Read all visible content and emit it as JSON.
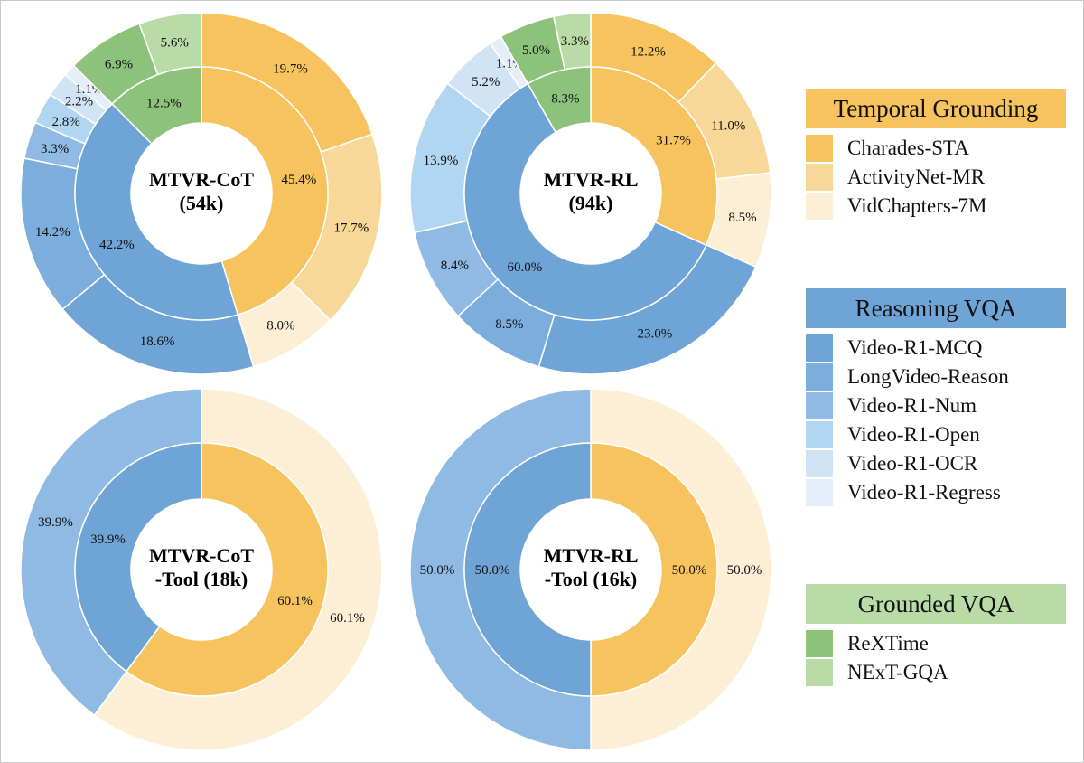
{
  "colors": {
    "Charades-STA": "#f6c35e",
    "ActivityNet-MR": "#f7d899",
    "VidChapters-7M": "#fcefd6",
    "Video-R1-MCQ": "#6fa4d6",
    "LongVideo-Reason": "#7caedd",
    "Video-R1-Num": "#8ebae4",
    "Video-R1-Open": "#b0d6f1",
    "Video-R1-OCR": "#d0e4f5",
    "Video-R1-Regress": "#e4eef8",
    "ReXTime": "#8dc27a",
    "NExT-GQA": "#b9dba7",
    "temporal_header": "#f6c35e",
    "reasoning_header": "#6fa4d6",
    "grounded_header": "#b9dba7",
    "inner_temporal": "#f6c35e",
    "inner_reasoning": "#6fa4d6",
    "inner_grounded": "#8dc27a"
  },
  "legend": {
    "groups": [
      {
        "header": "Temporal Grounding",
        "color_key": "temporal_header",
        "items": [
          "Charades-STA",
          "ActivityNet-MR",
          "VidChapters-7M"
        ]
      },
      {
        "header": "Reasoning VQA",
        "color_key": "reasoning_header",
        "items": [
          "Video-R1-MCQ",
          "LongVideo-Reason",
          "Video-R1-Num",
          "Video-R1-Open",
          "Video-R1-OCR",
          "Video-R1-Regress"
        ]
      },
      {
        "header": "Grounded VQA",
        "color_key": "grounded_header",
        "items": [
          "ReXTime",
          "NExT-GQA"
        ]
      }
    ]
  },
  "chart_data": [
    {
      "type": "pie",
      "title": "MTVR-CoT (54k)",
      "title_lines": [
        "MTVR-CoT",
        "(54k)"
      ],
      "inner": [
        {
          "name": "Temporal Grounding",
          "value": 45.4,
          "label": "45.4%",
          "color_key": "inner_temporal"
        },
        {
          "name": "Reasoning VQA",
          "value": 42.2,
          "label": "42.2%",
          "color_key": "inner_reasoning"
        },
        {
          "name": "Grounded VQA",
          "value": 12.5,
          "label": "12.5%",
          "color_key": "inner_grounded"
        }
      ],
      "outer": [
        {
          "name": "Charades-STA",
          "value": 19.7,
          "label": "19.7%"
        },
        {
          "name": "ActivityNet-MR",
          "value": 17.7,
          "label": "17.7%"
        },
        {
          "name": "VidChapters-7M",
          "value": 8.0,
          "label": "8.0%"
        },
        {
          "name": "Video-R1-MCQ",
          "value": 18.6,
          "label": "18.6%"
        },
        {
          "name": "LongVideo-Reason",
          "value": 14.2,
          "label": "14.2%"
        },
        {
          "name": "Video-R1-Num",
          "value": 3.3,
          "label": "3.3%"
        },
        {
          "name": "Video-R1-Open",
          "value": 2.8,
          "label": "2.8%"
        },
        {
          "name": "Video-R1-OCR",
          "value": 2.2,
          "label": "2.2%"
        },
        {
          "name": "Video-R1-Regress",
          "value": 1.1,
          "label": "1.1%"
        },
        {
          "name": "ReXTime",
          "value": 6.9,
          "label": "6.9%"
        },
        {
          "name": "NExT-GQA",
          "value": 5.6,
          "label": "5.6%"
        }
      ]
    },
    {
      "type": "pie",
      "title": "MTVR-RL (94k)",
      "title_lines": [
        "MTVR-RL",
        "(94k)"
      ],
      "inner": [
        {
          "name": "Temporal Grounding",
          "value": 31.7,
          "label": "31.7%",
          "color_key": "inner_temporal"
        },
        {
          "name": "Reasoning VQA",
          "value": 60.0,
          "label": "60.0%",
          "color_key": "inner_reasoning"
        },
        {
          "name": "Grounded VQA",
          "value": 8.3,
          "label": "8.3%",
          "color_key": "inner_grounded"
        }
      ],
      "outer": [
        {
          "name": "Charades-STA",
          "value": 12.2,
          "label": "12.2%"
        },
        {
          "name": "ActivityNet-MR",
          "value": 11.0,
          "label": "11.0%"
        },
        {
          "name": "VidChapters-7M",
          "value": 8.5,
          "label": "8.5%"
        },
        {
          "name": "Video-R1-MCQ",
          "value": 23.0,
          "label": "23.0%"
        },
        {
          "name": "LongVideo-Reason",
          "value": 8.5,
          "label": "8.5%"
        },
        {
          "name": "Video-R1-Num",
          "value": 8.4,
          "label": "8.4%"
        },
        {
          "name": "Video-R1-Open",
          "value": 13.9,
          "label": "13.9%"
        },
        {
          "name": "Video-R1-OCR",
          "value": 5.2,
          "label": "5.2%"
        },
        {
          "name": "Video-R1-Regress",
          "value": 1.1,
          "label": "1.1%"
        },
        {
          "name": "ReXTime",
          "value": 5.0,
          "label": "5.0%"
        },
        {
          "name": "NExT-GQA",
          "value": 3.3,
          "label": "3.3%"
        }
      ]
    },
    {
      "type": "pie",
      "title": "MTVR-CoT -Tool (18k)",
      "title_lines": [
        "MTVR-CoT",
        "-Tool (18k)"
      ],
      "inner": [
        {
          "name": "Temporal Grounding",
          "value": 60.1,
          "label": "60.1%",
          "color_key": "inner_temporal"
        },
        {
          "name": "Reasoning VQA",
          "value": 39.9,
          "label": "39.9%",
          "color_key": "inner_reasoning"
        }
      ],
      "outer": [
        {
          "name": "VidChapters-7M",
          "value": 60.1,
          "label": "60.1%"
        },
        {
          "name": "Video-R1-Num",
          "value": 39.9,
          "label": "39.9%"
        }
      ]
    },
    {
      "type": "pie",
      "title": "MTVR-RL -Tool (16k)",
      "title_lines": [
        "MTVR-RL",
        "-Tool (16k)"
      ],
      "inner": [
        {
          "name": "Temporal Grounding",
          "value": 50.0,
          "label": "50.0%",
          "color_key": "inner_temporal"
        },
        {
          "name": "Reasoning VQA",
          "value": 50.0,
          "label": "50.0%",
          "color_key": "inner_reasoning"
        }
      ],
      "outer": [
        {
          "name": "VidChapters-7M",
          "value": 50.0,
          "label": "50.0%"
        },
        {
          "name": "Video-R1-Num",
          "value": 50.0,
          "label": "50.0%"
        }
      ]
    }
  ]
}
